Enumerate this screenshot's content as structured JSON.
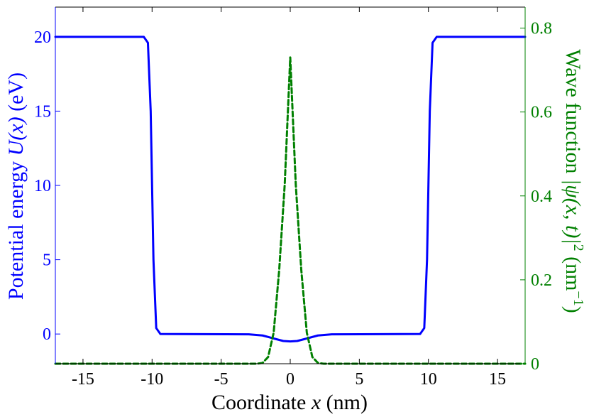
{
  "chart_data": {
    "type": "line",
    "title": "",
    "xlabel": "Coordinate",
    "xlabel_var": "x",
    "xlabel_unit": "(nm)",
    "ylabel_left": {
      "text": "Potential energy",
      "var": "U(x)",
      "unit": "(eV)"
    },
    "ylabel_right": {
      "text": "Wave function",
      "var": "|ψ(x, t)|",
      "exp": "2",
      "unit_pre": "(nm",
      "unit_exp": "−1",
      "unit_post": ")"
    },
    "xlim": [
      -17,
      17
    ],
    "ylim_left": [
      -2,
      22
    ],
    "ylim_right": [
      0,
      0.85
    ],
    "x_ticks": [
      -15,
      -10,
      -5,
      0,
      5,
      10,
      15
    ],
    "x_tick_labels": [
      "-15",
      "-10",
      "-5",
      "0",
      "5",
      "10",
      "15"
    ],
    "y_left_ticks": [
      0,
      5,
      10,
      15,
      20
    ],
    "y_left_tick_labels": [
      "0",
      "5",
      "10",
      "15",
      "20"
    ],
    "y_right_ticks": [
      0,
      0.2,
      0.4,
      0.6,
      0.8
    ],
    "y_right_tick_labels": [
      "0",
      "0.2",
      "0.4",
      "0.6",
      "0.8"
    ],
    "grid": false,
    "series": [
      {
        "axis": "left",
        "style": "solid",
        "color": "#0000ff",
        "x": [
          -17,
          -10.6,
          -10.3,
          -10.1,
          -10.0,
          -9.9,
          -9.7,
          -9.4,
          -3,
          -2,
          -1,
          -0.5,
          0,
          0.5,
          1,
          2,
          3,
          9.4,
          9.7,
          9.9,
          10.0,
          10.1,
          10.3,
          10.6,
          17
        ],
        "y": [
          20,
          20,
          19.6,
          15,
          10,
          5,
          0.4,
          0,
          -0.02,
          -0.1,
          -0.35,
          -0.47,
          -0.5,
          -0.47,
          -0.35,
          -0.1,
          -0.02,
          0,
          0.4,
          5,
          10,
          15,
          19.6,
          20,
          20
        ]
      },
      {
        "axis": "right",
        "style": "dashed",
        "color": "#008000",
        "x": [
          -17,
          -2.4,
          -2.0,
          -1.6,
          -1.2,
          -0.8,
          -0.4,
          0,
          0.4,
          0.8,
          1.2,
          1.6,
          2.0,
          2.4,
          17
        ],
        "y": [
          0,
          0.0001,
          0.002,
          0.016,
          0.074,
          0.223,
          0.427,
          0.73,
          0.427,
          0.223,
          0.074,
          0.016,
          0.002,
          0.0001,
          0
        ]
      }
    ]
  }
}
